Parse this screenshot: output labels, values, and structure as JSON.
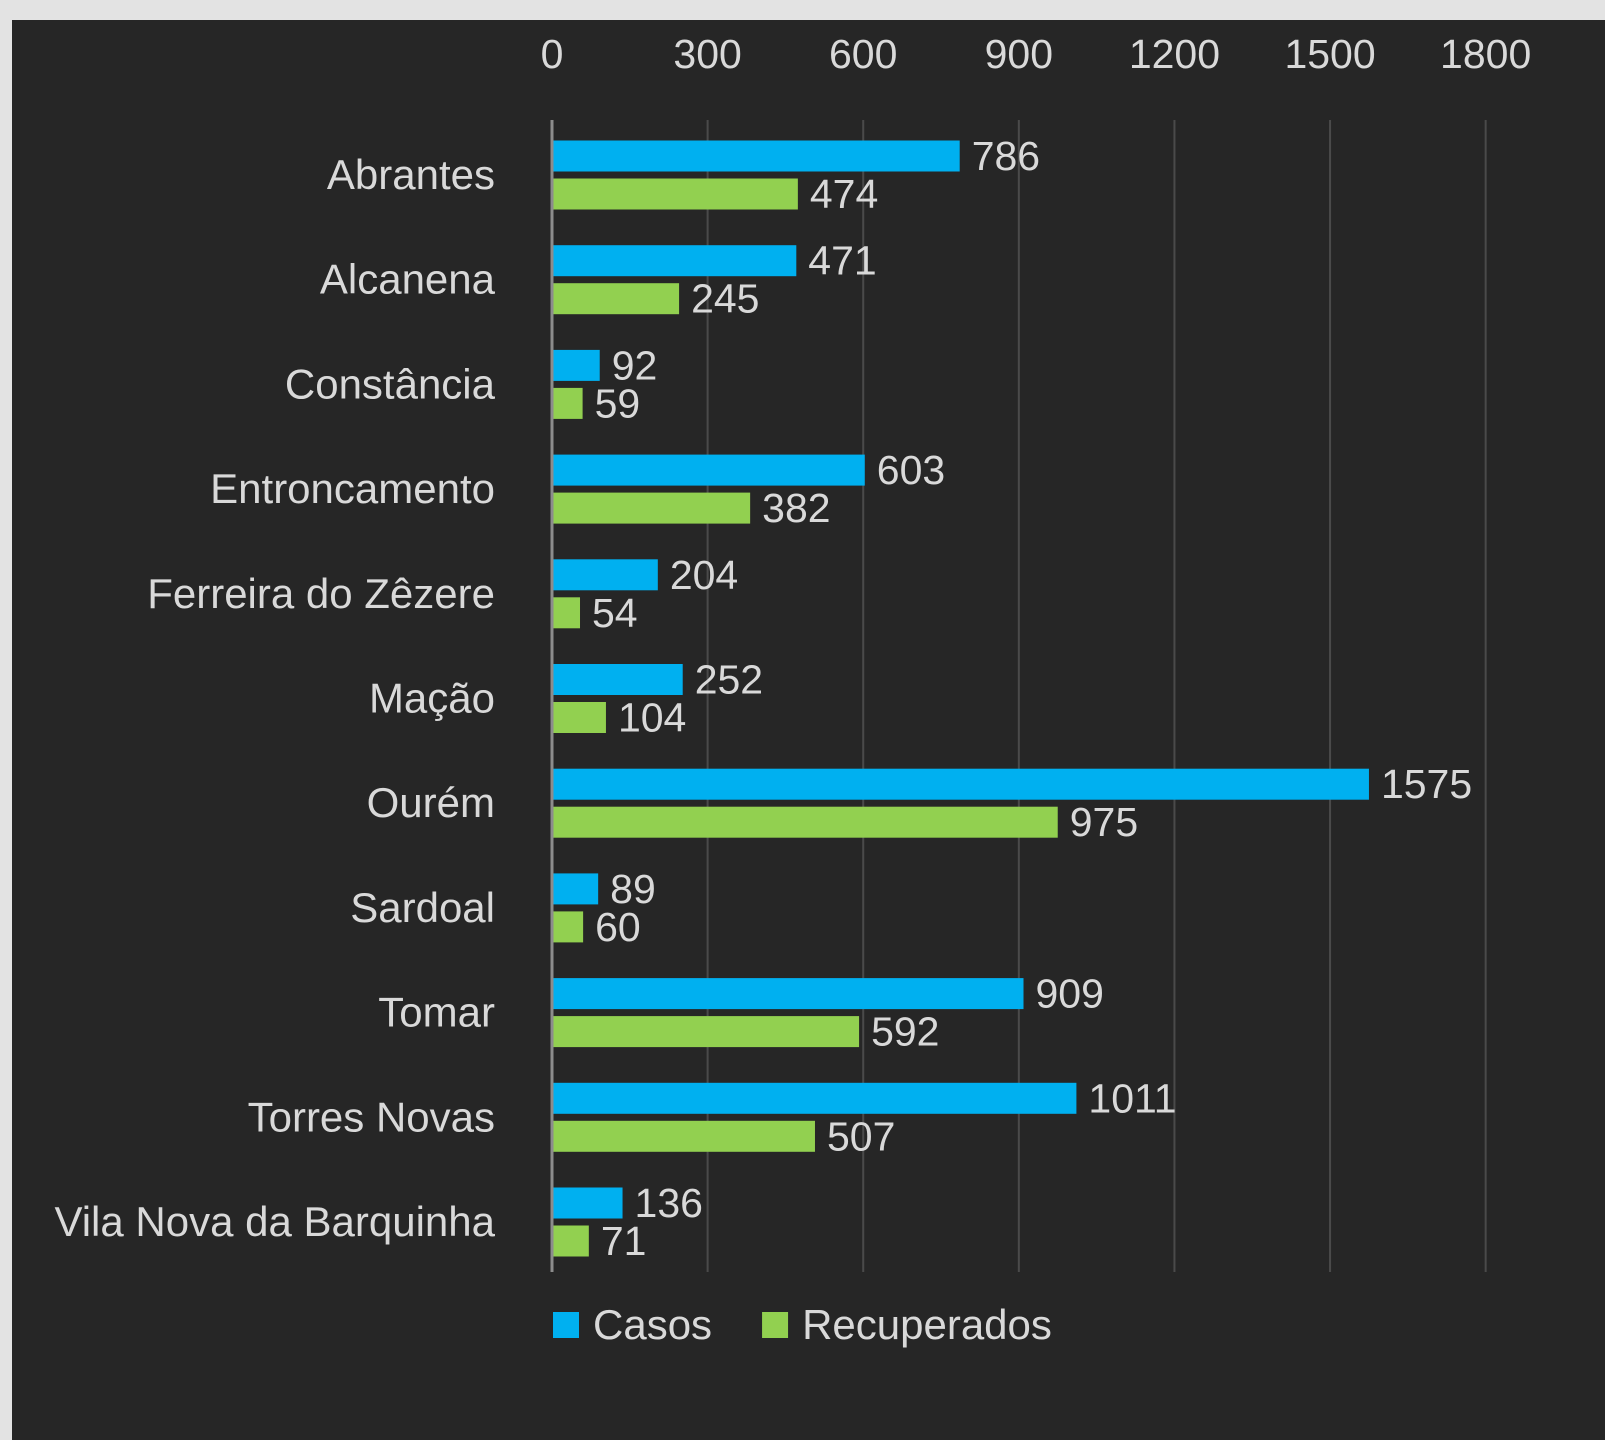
{
  "chart_data": {
    "type": "bar",
    "orientation": "horizontal",
    "title": "",
    "xlabel": "",
    "ylabel": "",
    "xlim": [
      0,
      1800
    ],
    "xticks": [
      0,
      300,
      600,
      900,
      1200,
      1500,
      1800
    ],
    "x_axis_position": "top",
    "grid": true,
    "legend_position": "bottom",
    "categories": [
      "Abrantes",
      "Alcanena",
      "Constância",
      "Entroncamento",
      "Ferreira do Zêzere",
      "Mação",
      "Ourém",
      "Sardoal",
      "Tomar",
      "Torres Novas",
      "Vila Nova da Barquinha"
    ],
    "series": [
      {
        "name": "Casos",
        "color": "#00b0f0",
        "values": [
          786,
          471,
          92,
          603,
          204,
          252,
          1575,
          89,
          909,
          1011,
          136
        ]
      },
      {
        "name": "Recuperados",
        "color": "#92d050",
        "values": [
          474,
          245,
          59,
          382,
          54,
          104,
          975,
          60,
          592,
          507,
          71
        ]
      }
    ]
  }
}
